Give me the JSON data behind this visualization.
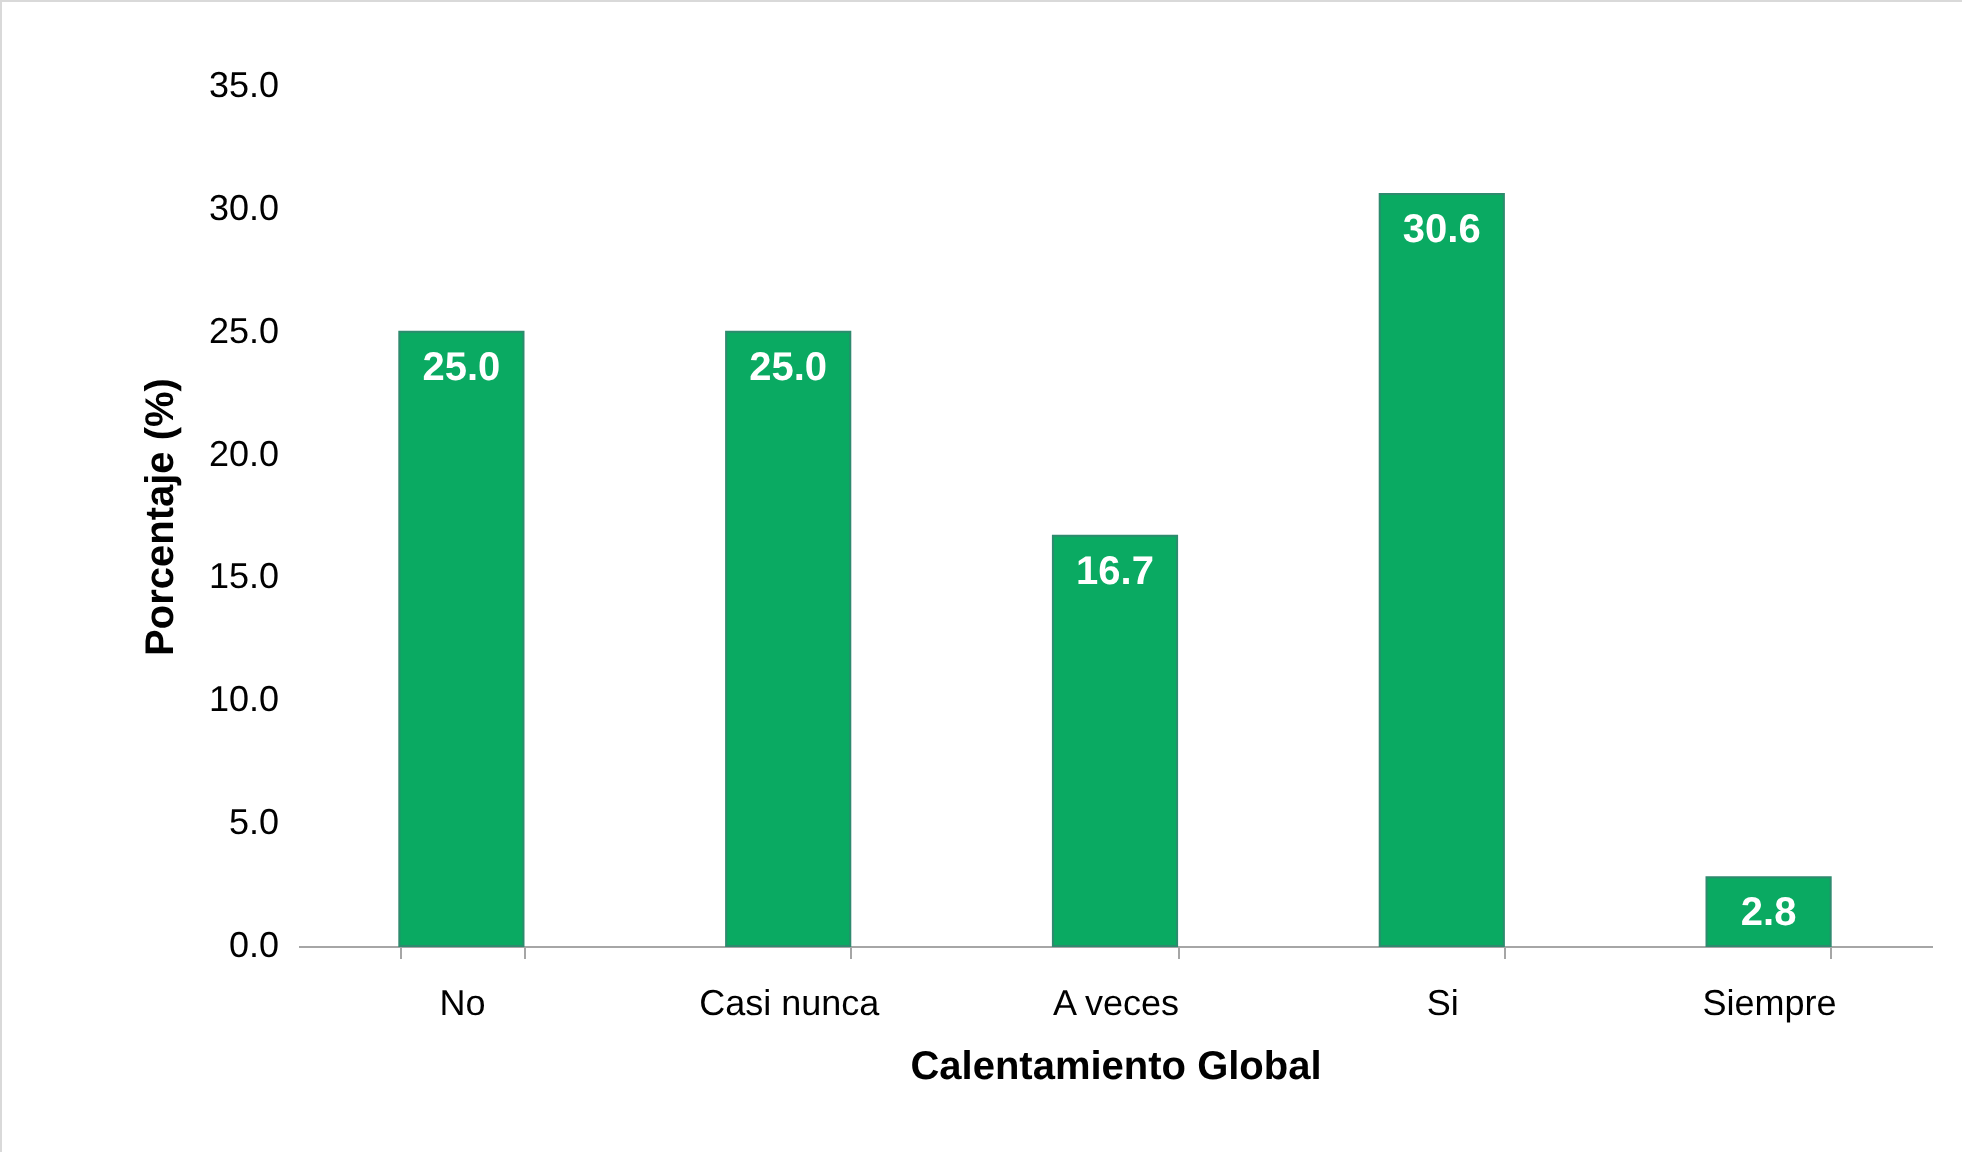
{
  "chart_data": {
    "type": "bar",
    "xlabel": "Calentamiento Global",
    "ylabel": "Porcentaje (%)",
    "categories": [
      "No",
      "Casi nunca",
      "A veces",
      "Si",
      "Siempre"
    ],
    "values": [
      25.0,
      25.0,
      16.7,
      30.6,
      2.8
    ],
    "value_labels": [
      "25.0",
      "25.0",
      "16.7",
      "30.6",
      "2.8"
    ],
    "color": "#0aaa62",
    "ylim": [
      0,
      35
    ],
    "yticks": [
      {
        "value": 0,
        "label": "0.0"
      },
      {
        "value": 5,
        "label": "5.0"
      },
      {
        "value": 10,
        "label": "10.0"
      },
      {
        "value": 15,
        "label": "15.0"
      },
      {
        "value": 20,
        "label": "20.0"
      },
      {
        "value": 25,
        "label": "25.0"
      },
      {
        "value": 30,
        "label": "30.0"
      },
      {
        "value": 35,
        "label": "35.0"
      }
    ],
    "grid": false
  }
}
